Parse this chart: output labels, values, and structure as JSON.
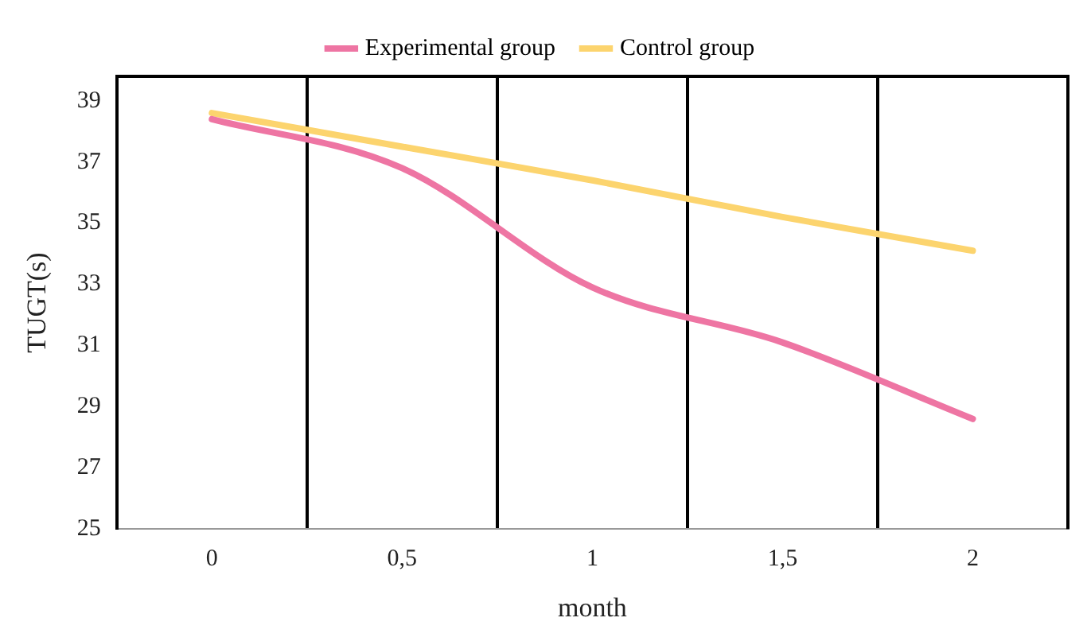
{
  "chart_data": {
    "type": "line",
    "xlabel": "month",
    "ylabel": "TUGT(s)",
    "categories": [
      "0",
      "0,5",
      "1",
      "1,5",
      "2"
    ],
    "series": [
      {
        "name": "Experimental group",
        "color": "#ee75a3",
        "values": [
          38.4,
          36.8,
          32.9,
          31.1,
          28.6
        ]
      },
      {
        "name": "Control group",
        "color": "#fcd46e",
        "values": [
          38.6,
          37.5,
          36.4,
          35.2,
          34.1
        ]
      }
    ],
    "ylim": [
      25,
      39.8
    ],
    "yticks": [
      25,
      27,
      29,
      31,
      33,
      35,
      37,
      39
    ],
    "grid": "x",
    "legend": "top",
    "marker": "none",
    "line_style": "solid"
  }
}
